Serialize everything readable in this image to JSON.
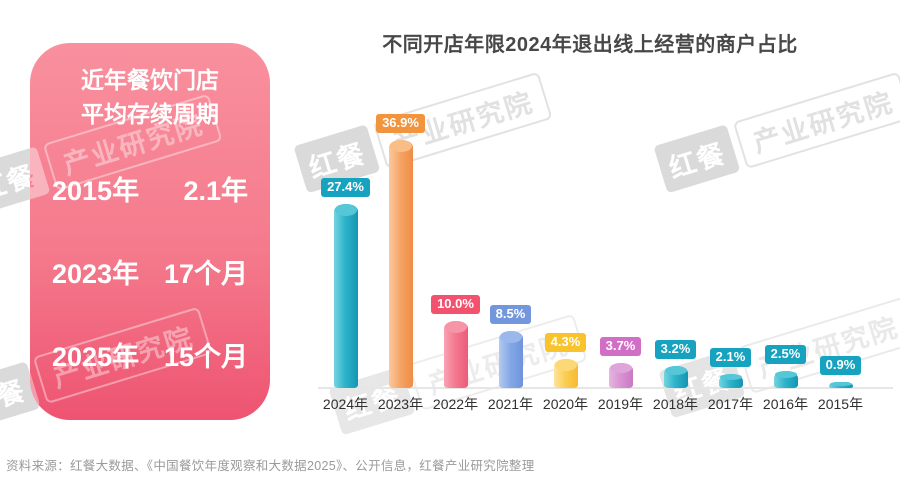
{
  "card": {
    "title_line1": "近年餐饮门店",
    "title_line2": "平均存续周期",
    "rows": [
      {
        "year": "2015年",
        "value": "2.1年"
      },
      {
        "year": "2023年",
        "value": "17个月"
      },
      {
        "year": "2025年",
        "value": "15个月"
      }
    ],
    "bg_top": "#f9909e",
    "bg_bottom": "#ee5471"
  },
  "chart_data": {
    "type": "bar",
    "title": "不同开店年限2024年退出线上经营的商户占比",
    "categories": [
      "2024年",
      "2023年",
      "2022年",
      "2021年",
      "2020年",
      "2019年",
      "2018年",
      "2017年",
      "2016年",
      "2015年"
    ],
    "values": [
      27.4,
      36.9,
      10.0,
      8.5,
      4.3,
      3.7,
      3.2,
      2.1,
      2.5,
      0.9
    ],
    "labels": [
      "27.4%",
      "36.9%",
      "10.0%",
      "8.5%",
      "4.3%",
      "3.7%",
      "3.2%",
      "2.1%",
      "2.5%",
      "0.9%"
    ],
    "unit": "%",
    "ylim": [
      0,
      40
    ],
    "grid": false,
    "legend": false,
    "baseline_color": "#e6e6e6",
    "color_keys": [
      "teal",
      "orange",
      "pink",
      "blue",
      "yellow",
      "orchid",
      "teal",
      "teal",
      "teal",
      "teal"
    ],
    "palette": {
      "teal": {
        "badge": "#17a3bf",
        "light": "#74d4e1",
        "body": "#2cb2ca",
        "dark": "#1595b1",
        "cap": "#55c7d7"
      },
      "orange": {
        "badge": "#f2943d",
        "light": "#fac99d",
        "body": "#f6a466",
        "dark": "#ef8c45",
        "cap": "#f9bd88"
      },
      "pink": {
        "badge": "#f4516f",
        "light": "#f9a3b3",
        "body": "#f3788f",
        "dark": "#ee5a7a",
        "cap": "#f795a8"
      },
      "blue": {
        "badge": "#7397dc",
        "light": "#b3c9f0",
        "body": "#84a8e6",
        "dark": "#6e93da",
        "cap": "#9bb8ec"
      },
      "yellow": {
        "badge": "#f9c32e",
        "light": "#fde49f",
        "body": "#fbcd50",
        "dark": "#f7ba30",
        "cap": "#fcd976"
      },
      "orchid": {
        "badge": "#d16fc6",
        "light": "#e7b6e0",
        "body": "#d893d1",
        "dark": "#ca79c2",
        "cap": "#dfa4d9"
      }
    }
  },
  "footer": {
    "source": "资料来源：红餐大数据、《中国餐饮年度观察和大数据2025》、公开信息，红餐产业研究院整理"
  },
  "watermark": {
    "brand": "红餐",
    "org": "产业研究院"
  }
}
